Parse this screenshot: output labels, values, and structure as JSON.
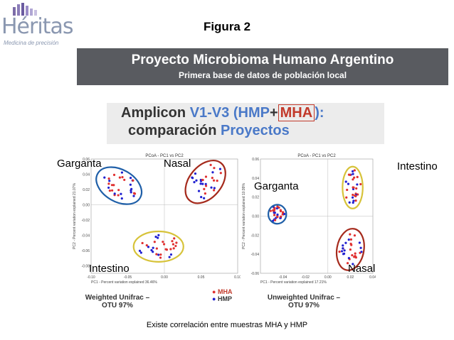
{
  "logo": {
    "name": "Héritas",
    "tagline": "Medicina de precisión"
  },
  "figure_title": "Figura 2",
  "banner": {
    "title": "Proyecto Microbioma Humano Argentino",
    "subtitle": "Primera base de datos de población local"
  },
  "amplicon": {
    "w1": "Amplicon",
    "w2": "V1-V3",
    "w3": "(HMP",
    "w4": "+",
    "w5": "MHA",
    "w6": "):",
    "w7": "comparación",
    "w8": "Proyectos"
  },
  "labels": {
    "l_garganta": "Garganta",
    "l_nasal": "Nasal",
    "l_intestino": "Intestino",
    "r_garganta": "Garganta",
    "r_nasal": "Nasal",
    "r_intestino": "Intestino"
  },
  "legend": {
    "mha": "MHA",
    "hmp": "HMP"
  },
  "caption": "Existe correlación entre muestras MHA y HMP",
  "colors": {
    "mha": "#e03030",
    "hmp": "#2020d0",
    "ellipse_blue": "#1f5fa8",
    "ellipse_red": "#a52a1c",
    "ellipse_yellow": "#d7c33a"
  },
  "chart_data": [
    {
      "type": "scatter",
      "title": "PCoA - PC1 vs PC2",
      "xlabel": "PC1 - Percent variation explained 36.46%",
      "ylabel": "PC2 - Percent variation explained 21.07%",
      "bottom_caption": "Weighted Unifrac – OTU 97%",
      "xlim": [
        -0.1,
        0.1
      ],
      "ylim": [
        -0.09,
        0.06
      ],
      "xticks": [
        -0.1,
        -0.05,
        0.0,
        0.05,
        0.1
      ],
      "yticks": [
        0.06,
        0.04,
        0.02,
        0.0,
        -0.02,
        -0.04,
        -0.06,
        -0.08
      ],
      "clusters": [
        {
          "label": "Garganta",
          "center": [
            -0.062,
            0.025
          ],
          "rx": 0.022,
          "ry": 0.032,
          "angle": -60,
          "ellipse": "ellipse_blue"
        },
        {
          "label": "Nasal",
          "center": [
            0.056,
            0.03
          ],
          "rx": 0.022,
          "ry": 0.032,
          "angle": 40,
          "ellipse": "ellipse_red"
        },
        {
          "label": "Intestino",
          "center": [
            -0.008,
            -0.055
          ],
          "rx": 0.034,
          "ry": 0.02,
          "angle": 0,
          "ellipse": "ellipse_yellow"
        }
      ]
    },
    {
      "type": "scatter",
      "title": "PCoA - PC1 vs PC2",
      "xlabel": "PC1 - Percent variation explained 17.21%",
      "ylabel": "PC2 - Percent variation explained 10.99%",
      "bottom_caption": "Unweighted Unifrac – OTU 97%",
      "xlim": [
        -0.06,
        0.04
      ],
      "ylim": [
        -0.06,
        0.06
      ],
      "xticks": [
        -0.04,
        -0.02,
        0.0,
        0.02,
        0.04
      ],
      "yticks": [
        0.06,
        0.04,
        0.02,
        0.0,
        -0.02,
        -0.04,
        -0.06
      ],
      "clusters": [
        {
          "label": "Garganta",
          "center": [
            -0.045,
            0.002
          ],
          "rx": 0.008,
          "ry": 0.01,
          "angle": 0,
          "ellipse": "ellipse_blue"
        },
        {
          "label": "Nasal",
          "center": [
            0.02,
            -0.035
          ],
          "rx": 0.012,
          "ry": 0.022,
          "angle": 10,
          "ellipse": "ellipse_red"
        },
        {
          "label": "Intestino",
          "center": [
            0.022,
            0.03
          ],
          "rx": 0.009,
          "ry": 0.022,
          "angle": 0,
          "ellipse": "ellipse_yellow"
        }
      ]
    }
  ]
}
